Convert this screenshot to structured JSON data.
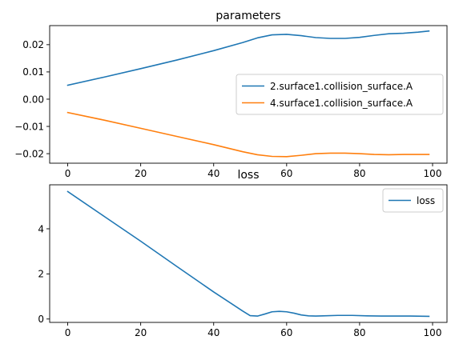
{
  "chart_data": [
    {
      "type": "line",
      "title": "parameters",
      "xlabel": "",
      "ylabel": "",
      "xlim": [
        -4.95,
        103.95
      ],
      "ylim": [
        -0.0235,
        0.027
      ],
      "xticks": [
        0,
        20,
        40,
        60,
        80,
        100
      ],
      "xtick_labels": [
        "0",
        "20",
        "40",
        "60",
        "80",
        "100"
      ],
      "yticks": [
        -0.02,
        -0.01,
        0.0,
        0.01,
        0.02
      ],
      "ytick_labels": [
        "−0.02",
        "−0.01",
        "0.00",
        "0.01",
        "0.02"
      ],
      "grid": false,
      "legend": "center-right",
      "series": [
        {
          "name": "2.surface1.collision_surface.A",
          "color": "#1f77b4",
          "x": [
            0,
            10,
            20,
            30,
            40,
            48,
            52,
            56,
            60,
            64,
            68,
            72,
            76,
            80,
            84,
            88,
            92,
            96,
            99
          ],
          "y": [
            0.0051,
            0.0081,
            0.0112,
            0.0144,
            0.0178,
            0.0208,
            0.0225,
            0.0236,
            0.0238,
            0.0233,
            0.0226,
            0.0223,
            0.0223,
            0.0227,
            0.0234,
            0.024,
            0.0242,
            0.0246,
            0.025
          ]
        },
        {
          "name": "4.surface1.collision_surface.A",
          "color": "#ff7f0e",
          "x": [
            0,
            10,
            20,
            30,
            40,
            48,
            52,
            56,
            60,
            64,
            68,
            72,
            76,
            80,
            84,
            88,
            92,
            96,
            99
          ],
          "y": [
            -0.0049,
            -0.0077,
            -0.0107,
            -0.0137,
            -0.0167,
            -0.0193,
            -0.0204,
            -0.021,
            -0.0211,
            -0.0206,
            -0.02,
            -0.0198,
            -0.0198,
            -0.02,
            -0.0203,
            -0.0204,
            -0.0203,
            -0.0203,
            -0.0203
          ]
        }
      ]
    },
    {
      "type": "line",
      "title": "loss",
      "xlabel": "",
      "ylabel": "",
      "xlim": [
        -4.95,
        103.95
      ],
      "ylim": [
        -0.15,
        5.95
      ],
      "xticks": [
        0,
        20,
        40,
        60,
        80,
        100
      ],
      "xtick_labels": [
        "0",
        "20",
        "40",
        "60",
        "80",
        "100"
      ],
      "yticks": [
        0,
        2,
        4
      ],
      "ytick_labels": [
        "0",
        "2",
        "4"
      ],
      "grid": false,
      "legend": "upper-right",
      "series": [
        {
          "name": "loss",
          "color": "#1f77b4",
          "x": [
            0,
            10,
            20,
            30,
            40,
            48,
            50,
            52,
            54,
            56,
            58,
            60,
            62,
            64,
            66,
            68,
            70,
            74,
            78,
            82,
            86,
            90,
            94,
            99
          ],
          "y": [
            5.65,
            4.55,
            3.45,
            2.32,
            1.2,
            0.35,
            0.15,
            0.13,
            0.22,
            0.32,
            0.34,
            0.32,
            0.26,
            0.18,
            0.14,
            0.13,
            0.14,
            0.16,
            0.16,
            0.14,
            0.13,
            0.13,
            0.13,
            0.12
          ]
        }
      ]
    }
  ]
}
